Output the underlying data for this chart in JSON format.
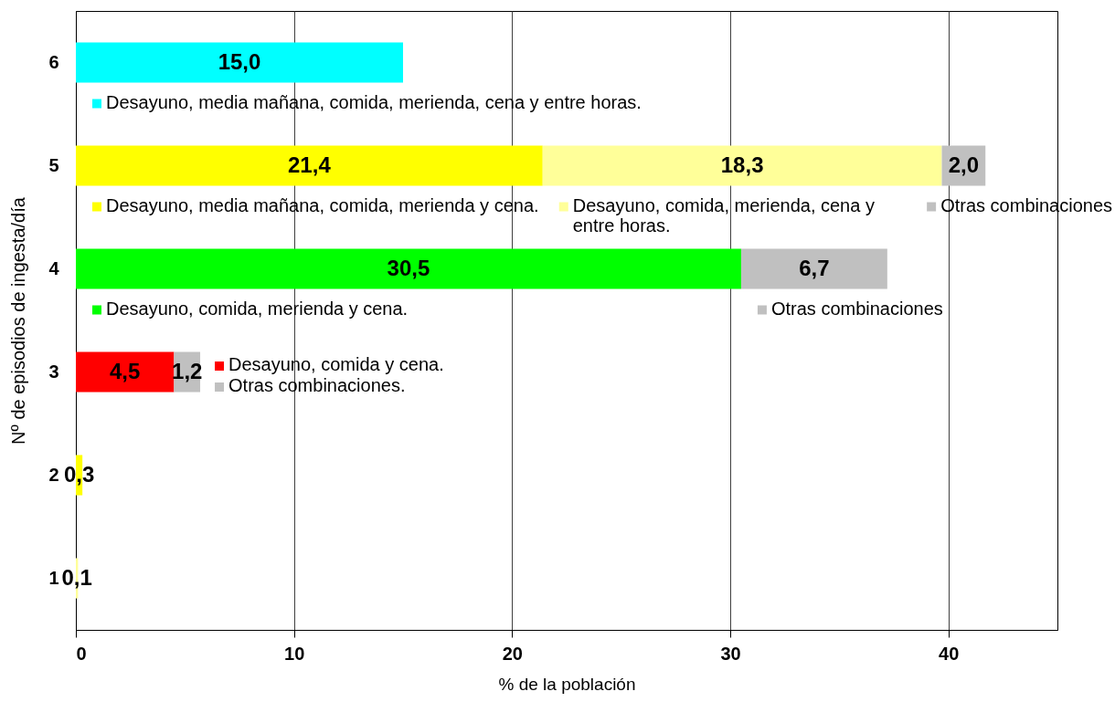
{
  "chart_data": {
    "type": "bar",
    "orientation": "horizontal",
    "stacked": true,
    "xlabel": "%  de la población",
    "ylabel": "Nº de episodios de ingesta/día",
    "categories": [
      "6",
      "5",
      "4",
      "3",
      "2",
      "1"
    ],
    "xlim": [
      0,
      45
    ],
    "xticks": [
      0,
      10,
      20,
      30,
      40
    ],
    "grid": "x",
    "legend": "top",
    "series": [
      {
        "name": "Desayuno, media mañana, comida, merienda, cena y entre horas.",
        "color": "#00ffff",
        "values": [
          15.0,
          null,
          null,
          null,
          null,
          null
        ],
        "value_labels": [
          "15,0",
          null,
          null,
          null,
          null,
          null
        ]
      },
      {
        "name": "Desayuno, media mañana, comida, merienda y cena.",
        "color": "#ffff00",
        "values": [
          null,
          21.4,
          null,
          null,
          null,
          null
        ],
        "value_labels": [
          null,
          "21,4",
          null,
          null,
          null,
          null
        ]
      },
      {
        "name": "Desayuno, comida, merienda, cena y entre horas.",
        "color": "#ffff99",
        "values": [
          null,
          18.3,
          null,
          null,
          null,
          null
        ],
        "value_labels": [
          null,
          "18,3",
          null,
          null,
          null,
          null
        ]
      },
      {
        "name": "Otras combinaciones",
        "color": "#c0c0c0",
        "values": [
          null,
          2.0,
          null,
          null,
          null,
          null
        ],
        "value_labels": [
          null,
          "2,0",
          null,
          null,
          null,
          null
        ]
      },
      {
        "name": "Desayuno, comida, merienda y cena.",
        "color": "#00ff00",
        "values": [
          null,
          null,
          30.5,
          null,
          null,
          null
        ],
        "value_labels": [
          null,
          null,
          "30,5",
          null,
          null,
          null
        ]
      },
      {
        "name": "Otras combinaciones",
        "color": "#c0c0c0",
        "values": [
          null,
          null,
          6.7,
          null,
          null,
          null
        ],
        "value_labels": [
          null,
          null,
          "6,7",
          null,
          null,
          null
        ]
      },
      {
        "name": "Desayuno, comida y cena.",
        "color": "#ff0000",
        "values": [
          null,
          null,
          null,
          4.5,
          null,
          null
        ],
        "value_labels": [
          null,
          null,
          null,
          "4,5",
          null,
          null
        ]
      },
      {
        "name": "Otras combinaciones.",
        "color": "#c0c0c0",
        "values": [
          null,
          null,
          null,
          1.2,
          null,
          null
        ],
        "value_labels": [
          null,
          null,
          null,
          "1,2",
          null,
          null
        ]
      },
      {
        "color": "#ffff00",
        "values": [
          null,
          null,
          null,
          null,
          0.3,
          null
        ],
        "value_labels": [
          null,
          null,
          null,
          null,
          "0,3",
          null
        ]
      },
      {
        "color": "#ffff99",
        "values": [
          null,
          null,
          null,
          null,
          null,
          0.1
        ],
        "value_labels": [
          null,
          null,
          null,
          null,
          null,
          "0,1"
        ]
      }
    ]
  }
}
